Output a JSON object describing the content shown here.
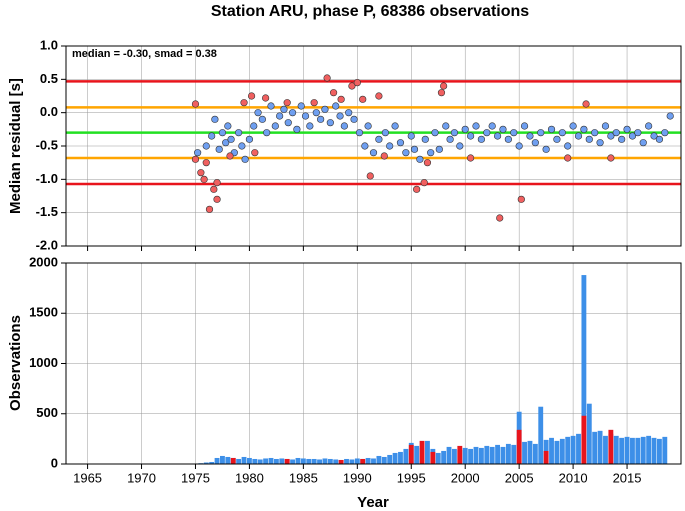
{
  "chart_data": [
    {
      "type": "scatter",
      "title": "Station ARU, phase P, 68386 observations",
      "ylabel": "Median residual [s]",
      "annotation": "median = -0.30, smad = 0.38",
      "xlim": [
        1963,
        2020
      ],
      "ylim": [
        -2.0,
        1.0
      ],
      "yticks": [
        {
          "value": 1.0,
          "label": "1.0"
        },
        0.5,
        {
          "value": 0.0,
          "label": "0.0"
        },
        -0.5,
        {
          "value": -1.0,
          "label": "-1.0"
        },
        -1.5,
        {
          "value": -2.0,
          "label": "-2.0"
        }
      ],
      "grid": true,
      "hlines": [
        {
          "value": 0.47,
          "color": "#e8141c"
        },
        {
          "value": 0.08,
          "color": "#ffa500"
        },
        {
          "value": -0.3,
          "color": "#22e022"
        },
        {
          "value": -0.68,
          "color": "#ffa500"
        },
        {
          "value": -1.07,
          "color": "#e8141c"
        }
      ],
      "series": [
        {
          "color": "#6f9ff0",
          "x": [
            1975.2,
            1976,
            1976.5,
            1976.8,
            1977.2,
            1977.5,
            1977.8,
            1978,
            1978.3,
            1978.6,
            1979,
            1979.3,
            1979.6,
            1980,
            1980.4,
            1980.8,
            1981.2,
            1981.6,
            1982,
            1982.4,
            1982.8,
            1983.2,
            1983.6,
            1984,
            1984.4,
            1984.8,
            1985.2,
            1985.6,
            1986.2,
            1986.6,
            1987,
            1987.5,
            1988,
            1988.4,
            1988.8,
            1989.2,
            1989.7,
            1990.2,
            1990.7,
            1991,
            1991.5,
            1992,
            1992.6,
            1993,
            1993.5,
            1994,
            1994.5,
            1995,
            1995.3,
            1995.8,
            1996.3,
            1996.8,
            1997.2,
            1997.6,
            1998.2,
            1998.6,
            1999,
            1999.5,
            2000,
            2000.5,
            2001,
            2001.5,
            2002,
            2002.5,
            2003,
            2003.5,
            2004,
            2004.5,
            2005,
            2005.5,
            2006,
            2006.5,
            2007,
            2007.5,
            2008,
            2008.5,
            2009,
            2009.5,
            2010,
            2010.5,
            2011,
            2011.5,
            2012,
            2012.5,
            2013,
            2013.5,
            2014,
            2014.5,
            2015,
            2015.5,
            2016,
            2016.5,
            2017,
            2017.5,
            2018,
            2018.5,
            2019
          ],
          "values": [
            -0.6,
            -0.5,
            -0.35,
            -0.1,
            -0.55,
            -0.3,
            -0.45,
            -0.2,
            -0.4,
            -0.6,
            -0.3,
            -0.5,
            -0.7,
            -0.4,
            -0.2,
            0.0,
            -0.1,
            -0.3,
            0.1,
            -0.2,
            -0.05,
            0.05,
            -0.15,
            0.0,
            -0.25,
            0.1,
            -0.05,
            -0.2,
            0.0,
            -0.1,
            0.05,
            -0.15,
            0.1,
            -0.05,
            -0.2,
            0.0,
            -0.1,
            -0.3,
            -0.5,
            -0.2,
            -0.6,
            -0.4,
            -0.3,
            -0.5,
            -0.2,
            -0.45,
            -0.6,
            -0.35,
            -0.55,
            -0.7,
            -0.4,
            -0.6,
            -0.3,
            -0.55,
            -0.2,
            -0.4,
            -0.3,
            -0.5,
            -0.25,
            -0.35,
            -0.2,
            -0.4,
            -0.3,
            -0.2,
            -0.35,
            -0.25,
            -0.4,
            -0.3,
            -0.5,
            -0.2,
            -0.35,
            -0.45,
            -0.3,
            -0.55,
            -0.25,
            -0.4,
            -0.3,
            -0.5,
            -0.2,
            -0.35,
            -0.25,
            -0.4,
            -0.3,
            -0.45,
            -0.2,
            -0.35,
            -0.3,
            -0.4,
            -0.25,
            -0.35,
            -0.3,
            -0.45,
            -0.2,
            -0.35,
            -0.4,
            -0.3,
            -0.05
          ]
        },
        {
          "color": "#f06060",
          "x": [
            1975,
            1975,
            1975.5,
            1975.8,
            1976,
            1976.3,
            1976.7,
            1977,
            1977,
            1978.2,
            1979.5,
            1980.2,
            1980.5,
            1981.5,
            1983.5,
            1986,
            1987.2,
            1987.8,
            1988.5,
            1989.5,
            1990,
            1990.5,
            1991.2,
            1992,
            1992.5,
            1995.5,
            1996.2,
            1996.5,
            1997.8,
            1998,
            2000.5,
            2003.2,
            2005.2,
            2009.5,
            2011.2,
            2013.5
          ],
          "values": [
            0.13,
            -0.7,
            -0.9,
            -1.0,
            -0.75,
            -1.45,
            -1.15,
            -1.3,
            -1.05,
            -0.65,
            0.15,
            0.25,
            -0.6,
            0.22,
            0.15,
            0.15,
            0.52,
            0.3,
            0.2,
            0.4,
            0.45,
            0.2,
            -0.95,
            0.25,
            -0.65,
            -1.15,
            -1.05,
            -0.75,
            0.3,
            0.4,
            -0.68,
            -1.58,
            -1.3,
            -0.68,
            0.13,
            -0.68
          ]
        }
      ]
    },
    {
      "type": "bar",
      "ylabel": "Observations",
      "xlabel": "Year",
      "xlim": [
        1963,
        2020
      ],
      "ylim": [
        0,
        2000
      ],
      "yticks": [
        0,
        500,
        1000,
        1500,
        2000
      ],
      "xticks": [
        1965,
        1970,
        1975,
        1980,
        1985,
        1990,
        1995,
        2000,
        2005,
        2010,
        2015
      ],
      "grid": true,
      "bar_width": 0.45,
      "series": [
        {
          "color": "#3d8fe8",
          "x": [
            1975,
            1975.5,
            1976,
            1976.5,
            1977,
            1977.5,
            1978,
            1978.5,
            1979,
            1979.5,
            1980,
            1980.5,
            1981,
            1981.5,
            1982,
            1982.5,
            1983,
            1983.5,
            1984,
            1984.5,
            1985,
            1985.5,
            1986,
            1986.5,
            1987,
            1987.5,
            1988,
            1988.5,
            1989,
            1989.5,
            1990,
            1990.5,
            1991,
            1991.5,
            1992,
            1992.5,
            1993,
            1993.5,
            1994,
            1994.5,
            1995,
            1995.5,
            1996,
            1996.5,
            1997,
            1997.5,
            1998,
            1998.5,
            1999,
            1999.5,
            2000,
            2000.5,
            2001,
            2001.5,
            2002,
            2002.5,
            2003,
            2003.5,
            2004,
            2004.5,
            2005,
            2005.5,
            2006,
            2006.5,
            2007,
            2007.5,
            2008,
            2008.5,
            2009,
            2009.5,
            2010,
            2010.5,
            2011,
            2011.5,
            2012,
            2012.5,
            2013,
            2013.5,
            2014,
            2014.5,
            2015,
            2015.5,
            2016,
            2016.5,
            2017,
            2017.5,
            2018,
            2018.5
          ],
          "values": [
            5,
            8,
            15,
            20,
            60,
            80,
            70,
            60,
            50,
            70,
            60,
            50,
            45,
            55,
            60,
            50,
            55,
            50,
            45,
            60,
            55,
            50,
            50,
            45,
            55,
            50,
            45,
            40,
            50,
            45,
            55,
            50,
            60,
            55,
            80,
            70,
            90,
            110,
            120,
            150,
            210,
            180,
            160,
            230,
            150,
            110,
            130,
            170,
            150,
            140,
            160,
            150,
            170,
            160,
            180,
            170,
            190,
            170,
            200,
            190,
            520,
            220,
            230,
            200,
            570,
            240,
            260,
            230,
            250,
            270,
            280,
            300,
            1880,
            600,
            320,
            330,
            280,
            300,
            280,
            260,
            270,
            260,
            260,
            270,
            280,
            260,
            250,
            270
          ]
        },
        {
          "color": "#e8141c",
          "x": [
            1978.5,
            1983.5,
            1988.5,
            1990.5,
            1995,
            1996,
            1997,
            1999.5,
            2005,
            2007.5,
            2011,
            2013.5
          ],
          "values": [
            60,
            50,
            40,
            50,
            190,
            230,
            120,
            180,
            340,
            130,
            480,
            340
          ]
        }
      ]
    }
  ]
}
